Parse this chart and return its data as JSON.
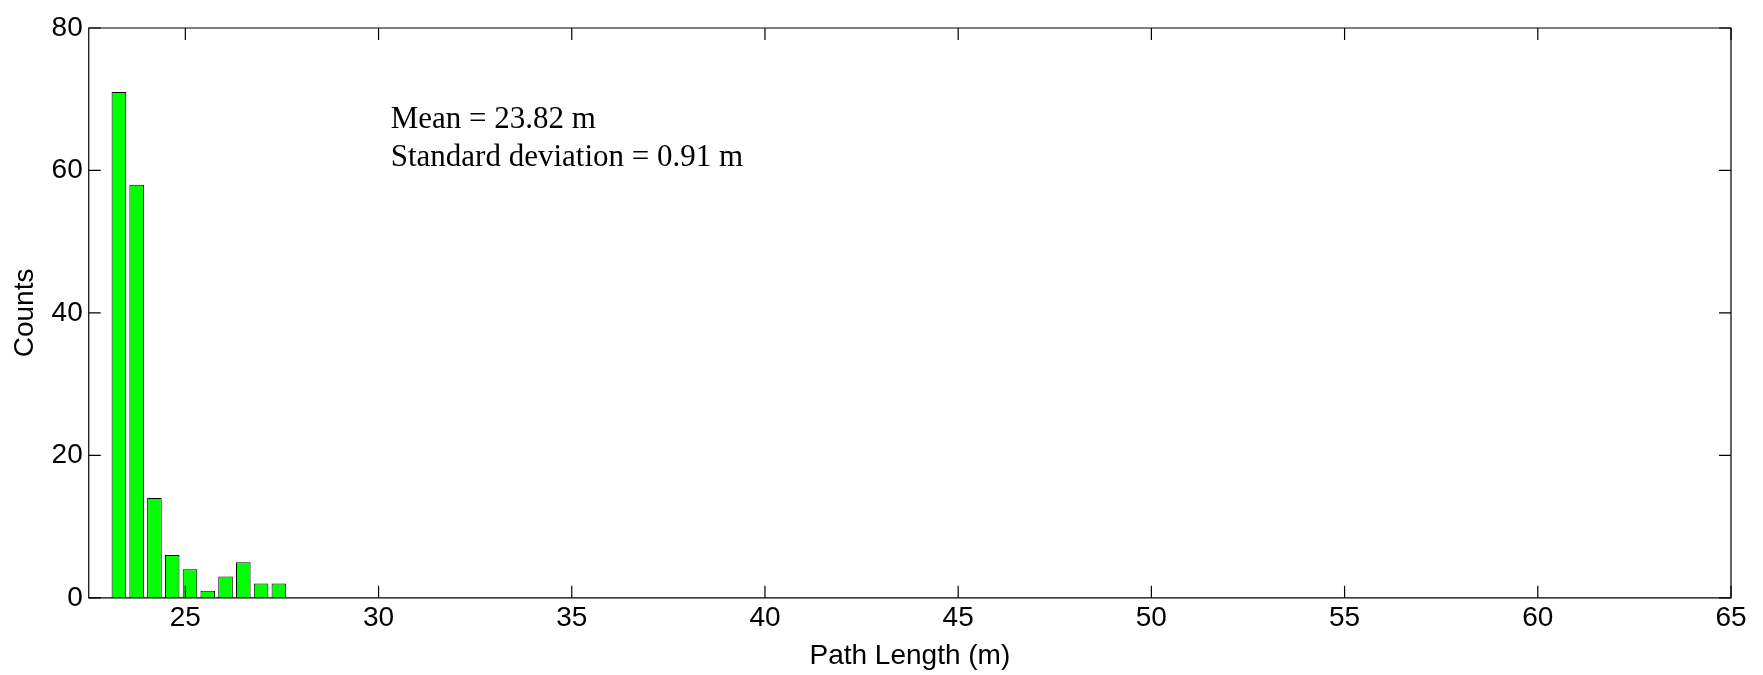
{
  "chart_data": {
    "type": "histogram",
    "xlabel": "Path Length (m)",
    "ylabel": "Counts",
    "color": "#00ff00",
    "bins": [
      23.05,
      23.51,
      23.97,
      24.43,
      24.89,
      25.35,
      25.81,
      26.27,
      26.73,
      27.19,
      27.65
    ],
    "values": [
      71,
      58,
      14,
      6,
      4,
      1,
      3,
      5,
      2,
      2
    ],
    "xlim": [
      22.5,
      65
    ],
    "xticks": [
      25,
      30,
      35,
      40,
      45,
      50,
      55,
      60,
      65
    ],
    "ylim": [
      0,
      80
    ],
    "yticks": [
      0,
      20,
      40,
      60,
      80
    ],
    "annotations": [
      "Mean = 23.82 m",
      "Standard deviation = 0.91 m"
    ]
  }
}
